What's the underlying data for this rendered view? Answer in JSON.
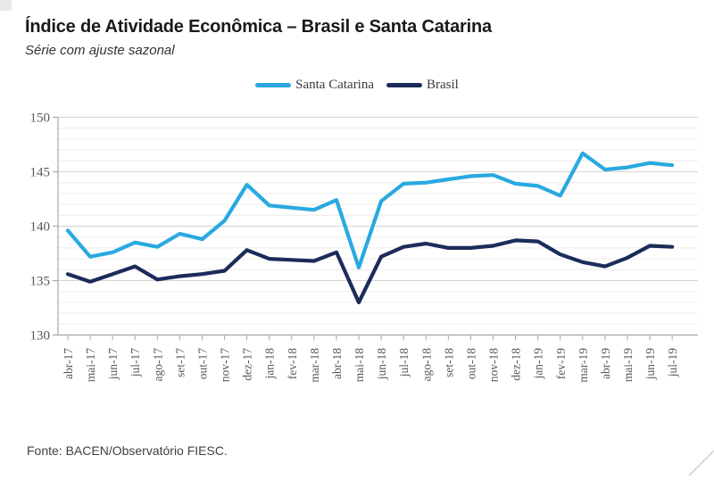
{
  "header": {
    "title": "Índice de Atividade Econômica – Brasil e Santa Catarina",
    "subtitle": "Série com ajuste sazonal"
  },
  "footer": {
    "source": "Fonte: BACEN/Observatório FIESC."
  },
  "chart_data": {
    "type": "line",
    "title": "Índice de Atividade Econômica – Brasil e Santa Catarina",
    "subtitle": "Série com ajuste sazonal",
    "xlabel": "",
    "ylabel": "",
    "ylim": [
      130,
      150
    ],
    "yticks": [
      130,
      135,
      140,
      145,
      150
    ],
    "grid": "horizontal, minor every 1 unit, major every 5 units",
    "legend_position": "top-center",
    "categories": [
      "abr-17",
      "mai-17",
      "jun-17",
      "jul-17",
      "ago-17",
      "set-17",
      "out-17",
      "nov-17",
      "dez-17",
      "jan-18",
      "fev-18",
      "mar-18",
      "abr-18",
      "mai-18",
      "jun-18",
      "jul-18",
      "ago-18",
      "set-18",
      "out-18",
      "nov-18",
      "dez-18",
      "jan-19",
      "fev-19",
      "mar-19",
      "abr-19",
      "mai-19",
      "jun-19",
      "jul-19"
    ],
    "series": [
      {
        "name": "Santa Catarina",
        "color": "#29a9e0",
        "values": [
          139.6,
          137.2,
          137.6,
          138.5,
          138.1,
          139.3,
          138.8,
          140.5,
          143.8,
          141.9,
          141.7,
          141.5,
          142.4,
          136.2,
          142.3,
          143.9,
          144.0,
          144.3,
          144.6,
          144.7,
          143.9,
          143.7,
          142.8,
          146.7,
          145.2,
          145.4,
          145.8,
          145.6
        ]
      },
      {
        "name": "Brasil",
        "color": "#1b2c5a",
        "values": [
          135.6,
          134.9,
          135.6,
          136.3,
          135.1,
          135.4,
          135.6,
          135.9,
          137.8,
          137.0,
          136.9,
          136.8,
          137.6,
          133.0,
          137.2,
          138.1,
          138.4,
          138.0,
          138.0,
          138.2,
          138.7,
          138.6,
          137.4,
          136.7,
          136.3,
          137.1,
          138.2,
          138.1
        ]
      }
    ],
    "axis_color": "#a8a8a8",
    "major_grid_color": "#d4d4d4",
    "minor_grid_color": "#ececec",
    "tick_label_color": "#595959"
  }
}
